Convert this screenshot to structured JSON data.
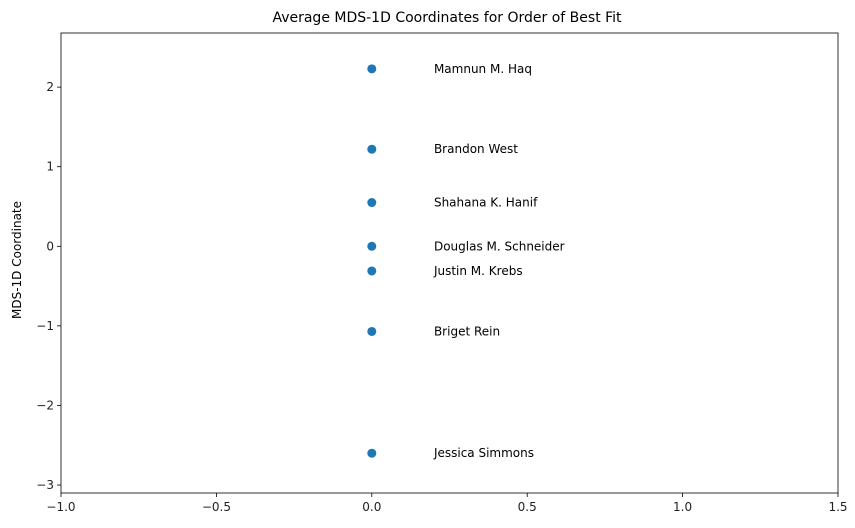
{
  "chart_data": {
    "type": "scatter",
    "title": "Average MDS-1D Coordinates for Order of Best Fit",
    "xlabel": "",
    "ylabel": "MDS-1D Coordinate",
    "xlim": [
      -1.0,
      1.5
    ],
    "ylim": [
      -3.1,
      2.68
    ],
    "xticks": [
      -1.0,
      -0.5,
      0.0,
      0.5,
      1.0,
      1.5
    ],
    "xtick_labels": [
      "−1.0",
      "−0.5",
      "0.0",
      "0.5",
      "1.0",
      "1.5"
    ],
    "yticks": [
      -3,
      -2,
      -1,
      0,
      1,
      2
    ],
    "ytick_labels": [
      "−3",
      "−2",
      "−1",
      "0",
      "1",
      "2"
    ],
    "grid": false,
    "marker_color": "#1f77b4",
    "points": [
      {
        "x": 0.0,
        "y": 2.23,
        "label": "Mamnun M. Haq"
      },
      {
        "x": 0.0,
        "y": 1.22,
        "label": "Brandon West"
      },
      {
        "x": 0.0,
        "y": 0.55,
        "label": "Shahana K. Hanif"
      },
      {
        "x": 0.0,
        "y": 0.0,
        "label": "Douglas M. Schneider"
      },
      {
        "x": 0.0,
        "y": -0.31,
        "label": "Justin M. Krebs"
      },
      {
        "x": 0.0,
        "y": -1.07,
        "label": "Briget Rein"
      },
      {
        "x": 0.0,
        "y": -2.6,
        "label": "Jessica Simmons"
      }
    ],
    "label_x": 0.2
  }
}
